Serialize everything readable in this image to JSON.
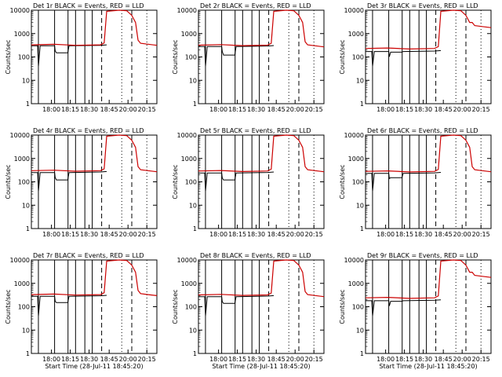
{
  "chart_data": [
    {
      "type": "line",
      "title": "Det 1r BLACK = Events, RED = LLD",
      "xlabel": "",
      "ylabel": "Counts/sec",
      "x_ticks": [
        "18:00",
        "18:15",
        "18:30",
        "18:45",
        "20:00",
        "20:15"
      ],
      "y_ticks": [
        "1",
        "10",
        "100",
        "1000",
        "10000"
      ],
      "ylim": [
        1,
        10000
      ],
      "series": [
        {
          "name": "Events",
          "color": "#000000",
          "base": 300,
          "dip": 150
        },
        {
          "name": "LLD",
          "color": "#cc0000",
          "base": 330,
          "tail": 350
        }
      ]
    },
    {
      "type": "line",
      "title": "Det 2r BLACK = Events, RED = LLD",
      "xlabel": "",
      "ylabel": "Counts/sec",
      "x_ticks": [
        "18:00",
        "18:15",
        "18:30",
        "18:45",
        "20:00",
        "20:15"
      ],
      "y_ticks": [
        "1",
        "10",
        "100",
        "1000",
        "10000"
      ],
      "ylim": [
        1,
        10000
      ],
      "series": [
        {
          "name": "Events",
          "color": "#000000",
          "base": 280,
          "dip": 120
        },
        {
          "name": "LLD",
          "color": "#cc0000",
          "base": 320,
          "tail": 300
        }
      ]
    },
    {
      "type": "line",
      "title": "Det 3r BLACK = Events, RED = LLD",
      "xlabel": "",
      "ylabel": "Counts/sec",
      "x_ticks": [
        "18:00",
        "18:15",
        "18:30",
        "18:45",
        "20:00",
        "20:15"
      ],
      "y_ticks": [
        "1",
        "10",
        "100",
        "1000",
        "10000"
      ],
      "ylim": [
        1,
        10000
      ],
      "series": [
        {
          "name": "Events",
          "color": "#000000",
          "base": 170,
          "dip": 160
        },
        {
          "name": "LLD",
          "color": "#cc0000",
          "base": 230,
          "tail": 2000
        }
      ]
    },
    {
      "type": "line",
      "title": "Det 4r BLACK = Events, RED = LLD",
      "xlabel": "",
      "ylabel": "Counts/sec",
      "x_ticks": [
        "18:00",
        "18:15",
        "18:30",
        "18:45",
        "20:00",
        "20:15"
      ],
      "y_ticks": [
        "1",
        "10",
        "100",
        "1000",
        "10000"
      ],
      "ylim": [
        1,
        10000
      ],
      "series": [
        {
          "name": "Events",
          "color": "#000000",
          "base": 250,
          "dip": 120
        },
        {
          "name": "LLD",
          "color": "#cc0000",
          "base": 300,
          "tail": 300
        }
      ]
    },
    {
      "type": "line",
      "title": "Det 5r BLACK = Events, RED = LLD",
      "xlabel": "",
      "ylabel": "Counts/sec",
      "x_ticks": [
        "18:00",
        "18:15",
        "18:30",
        "18:45",
        "20:00",
        "20:15"
      ],
      "y_ticks": [
        "1",
        "10",
        "100",
        "1000",
        "10000"
      ],
      "ylim": [
        1,
        10000
      ],
      "series": [
        {
          "name": "Events",
          "color": "#000000",
          "base": 240,
          "dip": 120
        },
        {
          "name": "LLD",
          "color": "#cc0000",
          "base": 290,
          "tail": 300
        }
      ]
    },
    {
      "type": "line",
      "title": "Det 6r BLACK = Events, RED = LLD",
      "xlabel": "",
      "ylabel": "Counts/sec",
      "x_ticks": [
        "18:00",
        "18:15",
        "18:30",
        "18:45",
        "20:00",
        "20:15"
      ],
      "y_ticks": [
        "1",
        "10",
        "100",
        "1000",
        "10000"
      ],
      "ylim": [
        1,
        10000
      ],
      "series": [
        {
          "name": "Events",
          "color": "#000000",
          "base": 230,
          "dip": 150
        },
        {
          "name": "LLD",
          "color": "#cc0000",
          "base": 280,
          "tail": 300
        }
      ]
    },
    {
      "type": "line",
      "title": "Det 7r BLACK = Events, RED = LLD",
      "xlabel": "Start Time (28-Jul-11 18:45:20)",
      "ylabel": "Counts/sec",
      "x_ticks": [
        "18:00",
        "18:15",
        "18:30",
        "18:45",
        "20:00",
        "20:15"
      ],
      "y_ticks": [
        "1",
        "10",
        "100",
        "1000",
        "10000"
      ],
      "ylim": [
        1,
        10000
      ],
      "series": [
        {
          "name": "Events",
          "color": "#000000",
          "base": 280,
          "dip": 150
        },
        {
          "name": "LLD",
          "color": "#cc0000",
          "base": 330,
          "tail": 330
        }
      ]
    },
    {
      "type": "line",
      "title": "Det 8r BLACK = Events, RED = LLD",
      "xlabel": "Start Time (28-Jul-11 18:45:20)",
      "ylabel": "Counts/sec",
      "x_ticks": [
        "18:00",
        "18:15",
        "18:30",
        "18:45",
        "20:00",
        "20:15"
      ],
      "y_ticks": [
        "1",
        "10",
        "100",
        "1000",
        "10000"
      ],
      "ylim": [
        1,
        10000
      ],
      "series": [
        {
          "name": "Events",
          "color": "#000000",
          "base": 270,
          "dip": 140
        },
        {
          "name": "LLD",
          "color": "#cc0000",
          "base": 320,
          "tail": 300
        }
      ]
    },
    {
      "type": "line",
      "title": "Det 9r BLACK = Events, RED = LLD",
      "xlabel": "Start Time (28-Jul-11 18:45:20)",
      "ylabel": "Counts/sec",
      "x_ticks": [
        "18:00",
        "18:15",
        "18:30",
        "18:45",
        "20:00",
        "20:15"
      ],
      "y_ticks": [
        "1",
        "10",
        "100",
        "1000",
        "10000"
      ],
      "ylim": [
        1,
        10000
      ],
      "series": [
        {
          "name": "Events",
          "color": "#000000",
          "base": 180,
          "dip": 170
        },
        {
          "name": "LLD",
          "color": "#cc0000",
          "base": 240,
          "tail": 2000
        }
      ]
    }
  ]
}
